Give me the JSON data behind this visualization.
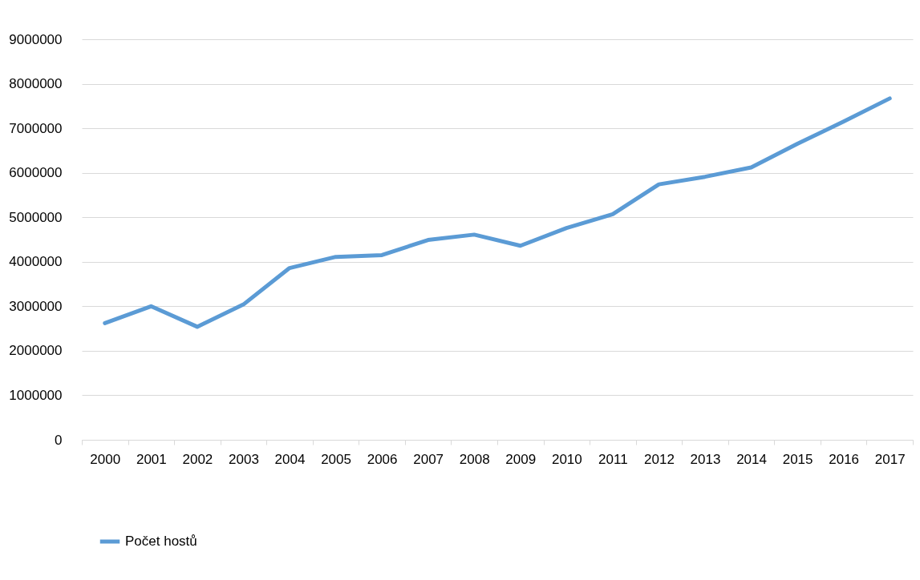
{
  "chart_data": {
    "type": "line",
    "categories": [
      "2000",
      "2001",
      "2002",
      "2003",
      "2004",
      "2005",
      "2006",
      "2007",
      "2008",
      "2009",
      "2010",
      "2011",
      "2012",
      "2013",
      "2014",
      "2015",
      "2016",
      "2017"
    ],
    "series": [
      {
        "name": "Počet hostů",
        "color": "#5b9bd5",
        "values": [
          2620000,
          3000000,
          2540000,
          3040000,
          3860000,
          4110000,
          4150000,
          4490000,
          4610000,
          4360000,
          4760000,
          5070000,
          5740000,
          5910000,
          6120000,
          6650000,
          7150000,
          7670000
        ]
      }
    ],
    "ylim": [
      0,
      9000000
    ],
    "yticks": [
      0,
      1000000,
      2000000,
      3000000,
      4000000,
      5000000,
      6000000,
      7000000,
      8000000,
      9000000
    ],
    "grid": "y",
    "legend": "bottom",
    "marker": "none",
    "line_style": "solid"
  }
}
